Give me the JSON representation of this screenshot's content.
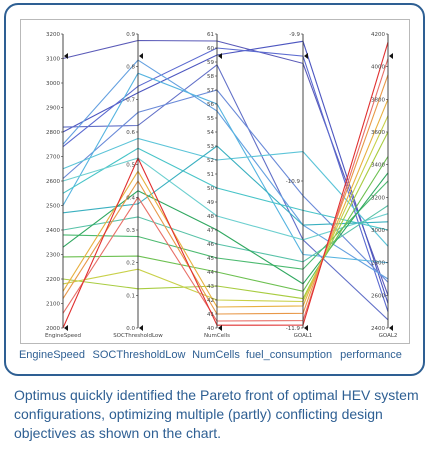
{
  "chart_data": {
    "type": "parallel-coordinates",
    "axes": [
      {
        "name": "EngineSpeed",
        "plot_label": "EngineSpeed",
        "caption": "EngineSpeed",
        "min": 2000,
        "max": 3200,
        "ticks": [
          "3200",
          "3100",
          "3000",
          "2900",
          "2800",
          "2700",
          "2600",
          "2500",
          "2400",
          "2300",
          "2200",
          "2100",
          "2000"
        ]
      },
      {
        "name": "SOCThresholdLow",
        "plot_label": "SOCThresholdLow",
        "caption": "SOCThresholdLow",
        "min": 0.0,
        "max": 0.9,
        "ticks": [
          "0.9",
          "0.8",
          "0.7",
          "0.6",
          "0.5",
          "0.4",
          "0.3",
          "0.2",
          "0.1",
          "0.0"
        ]
      },
      {
        "name": "NumCells",
        "plot_label": "NumCells",
        "caption": "NumCells",
        "min": 40,
        "max": 61,
        "ticks": [
          "61",
          "60",
          "59",
          "58",
          "57",
          "56",
          "55",
          "54",
          "53",
          "52",
          "51",
          "50",
          "49",
          "48",
          "47",
          "46",
          "45",
          "44",
          "43",
          "42",
          "41",
          "40"
        ]
      },
      {
        "name": "GOAL1",
        "plot_label": "GOAL1",
        "caption": "fuel_consumption",
        "min": -11.9,
        "max": -9.9,
        "ticks": [
          "-9.9",
          "-10.9",
          "-11.9"
        ]
      },
      {
        "name": "GOAL2",
        "plot_label": "GOAL2",
        "caption": "performance",
        "min": 2400,
        "max": 4200,
        "ticks": [
          "4200",
          "4000",
          "3800",
          "3600",
          "3400",
          "3200",
          "3000",
          "2800",
          "2600",
          "2400"
        ]
      }
    ],
    "series": [
      {
        "values": [
          3100,
          0.88,
          60.5,
          -10.1,
          2600
        ],
        "color": "#5a5ab8"
      },
      {
        "values": [
          2800,
          0.72,
          59.5,
          -9.95,
          2550
        ],
        "color": "#4d56c0"
      },
      {
        "values": [
          2740,
          0.74,
          60.0,
          -10.05,
          2500
        ],
        "color": "#5b6ad0"
      },
      {
        "values": [
          2820,
          0.62,
          58.8,
          -11.3,
          2450
        ],
        "color": "#6270c8"
      },
      {
        "values": [
          2610,
          0.66,
          57.0,
          -11.0,
          2680
        ],
        "color": "#6a8ad8"
      },
      {
        "values": [
          2750,
          0.82,
          55.5,
          -11.2,
          2700
        ],
        "color": "#64a0e0"
      },
      {
        "values": [
          2500,
          0.78,
          56.0,
          -11.4,
          2800
        ],
        "color": "#56b4e0"
      },
      {
        "values": [
          2650,
          0.58,
          52.0,
          -10.7,
          2900
        ],
        "color": "#5cc4d8"
      },
      {
        "values": [
          2550,
          0.55,
          50.0,
          -11.1,
          3000
        ],
        "color": "#48c4c8"
      },
      {
        "values": [
          2600,
          0.52,
          48.0,
          -11.3,
          3100
        ],
        "color": "#6ccfcf"
      },
      {
        "values": [
          2470,
          0.38,
          53.0,
          -11.2,
          3050
        ],
        "color": "#3ab0c0"
      },
      {
        "values": [
          2400,
          0.34,
          46.0,
          -11.45,
          3150
        ],
        "color": "#58c2a8"
      },
      {
        "values": [
          2380,
          0.28,
          45.0,
          -11.5,
          3300
        ],
        "color": "#4cba70"
      },
      {
        "values": [
          2330,
          0.42,
          47.0,
          -11.6,
          3350
        ],
        "color": "#30a860"
      },
      {
        "values": [
          2290,
          0.22,
          44.0,
          -11.65,
          3450
        ],
        "color": "#6cc050"
      },
      {
        "values": [
          2200,
          0.12,
          43.0,
          -11.7,
          3600
        ],
        "color": "#a8cc40"
      },
      {
        "values": [
          2180,
          0.18,
          42.0,
          -11.72,
          3700
        ],
        "color": "#c8d048"
      },
      {
        "values": [
          2150,
          0.48,
          41.5,
          -11.75,
          3800
        ],
        "color": "#e8b040"
      },
      {
        "values": [
          2120,
          0.45,
          41.0,
          -11.8,
          3950
        ],
        "color": "#e89848"
      },
      {
        "values": [
          2060,
          0.4,
          40.5,
          -11.85,
          4050
        ],
        "color": "#e87068"
      },
      {
        "values": [
          2000,
          0.52,
          40.2,
          -11.88,
          4150
        ],
        "color": "#e03030"
      }
    ]
  },
  "captions": [
    "EngineSpeed",
    "SOCThresholdLow",
    "NumCells",
    "fuel_consumption",
    "performance"
  ],
  "description": "Optimus quickly identified the Pareto front of optimal HEV system configurations, optimizing multiple (partly) conflicting design objectives as shown on the chart."
}
